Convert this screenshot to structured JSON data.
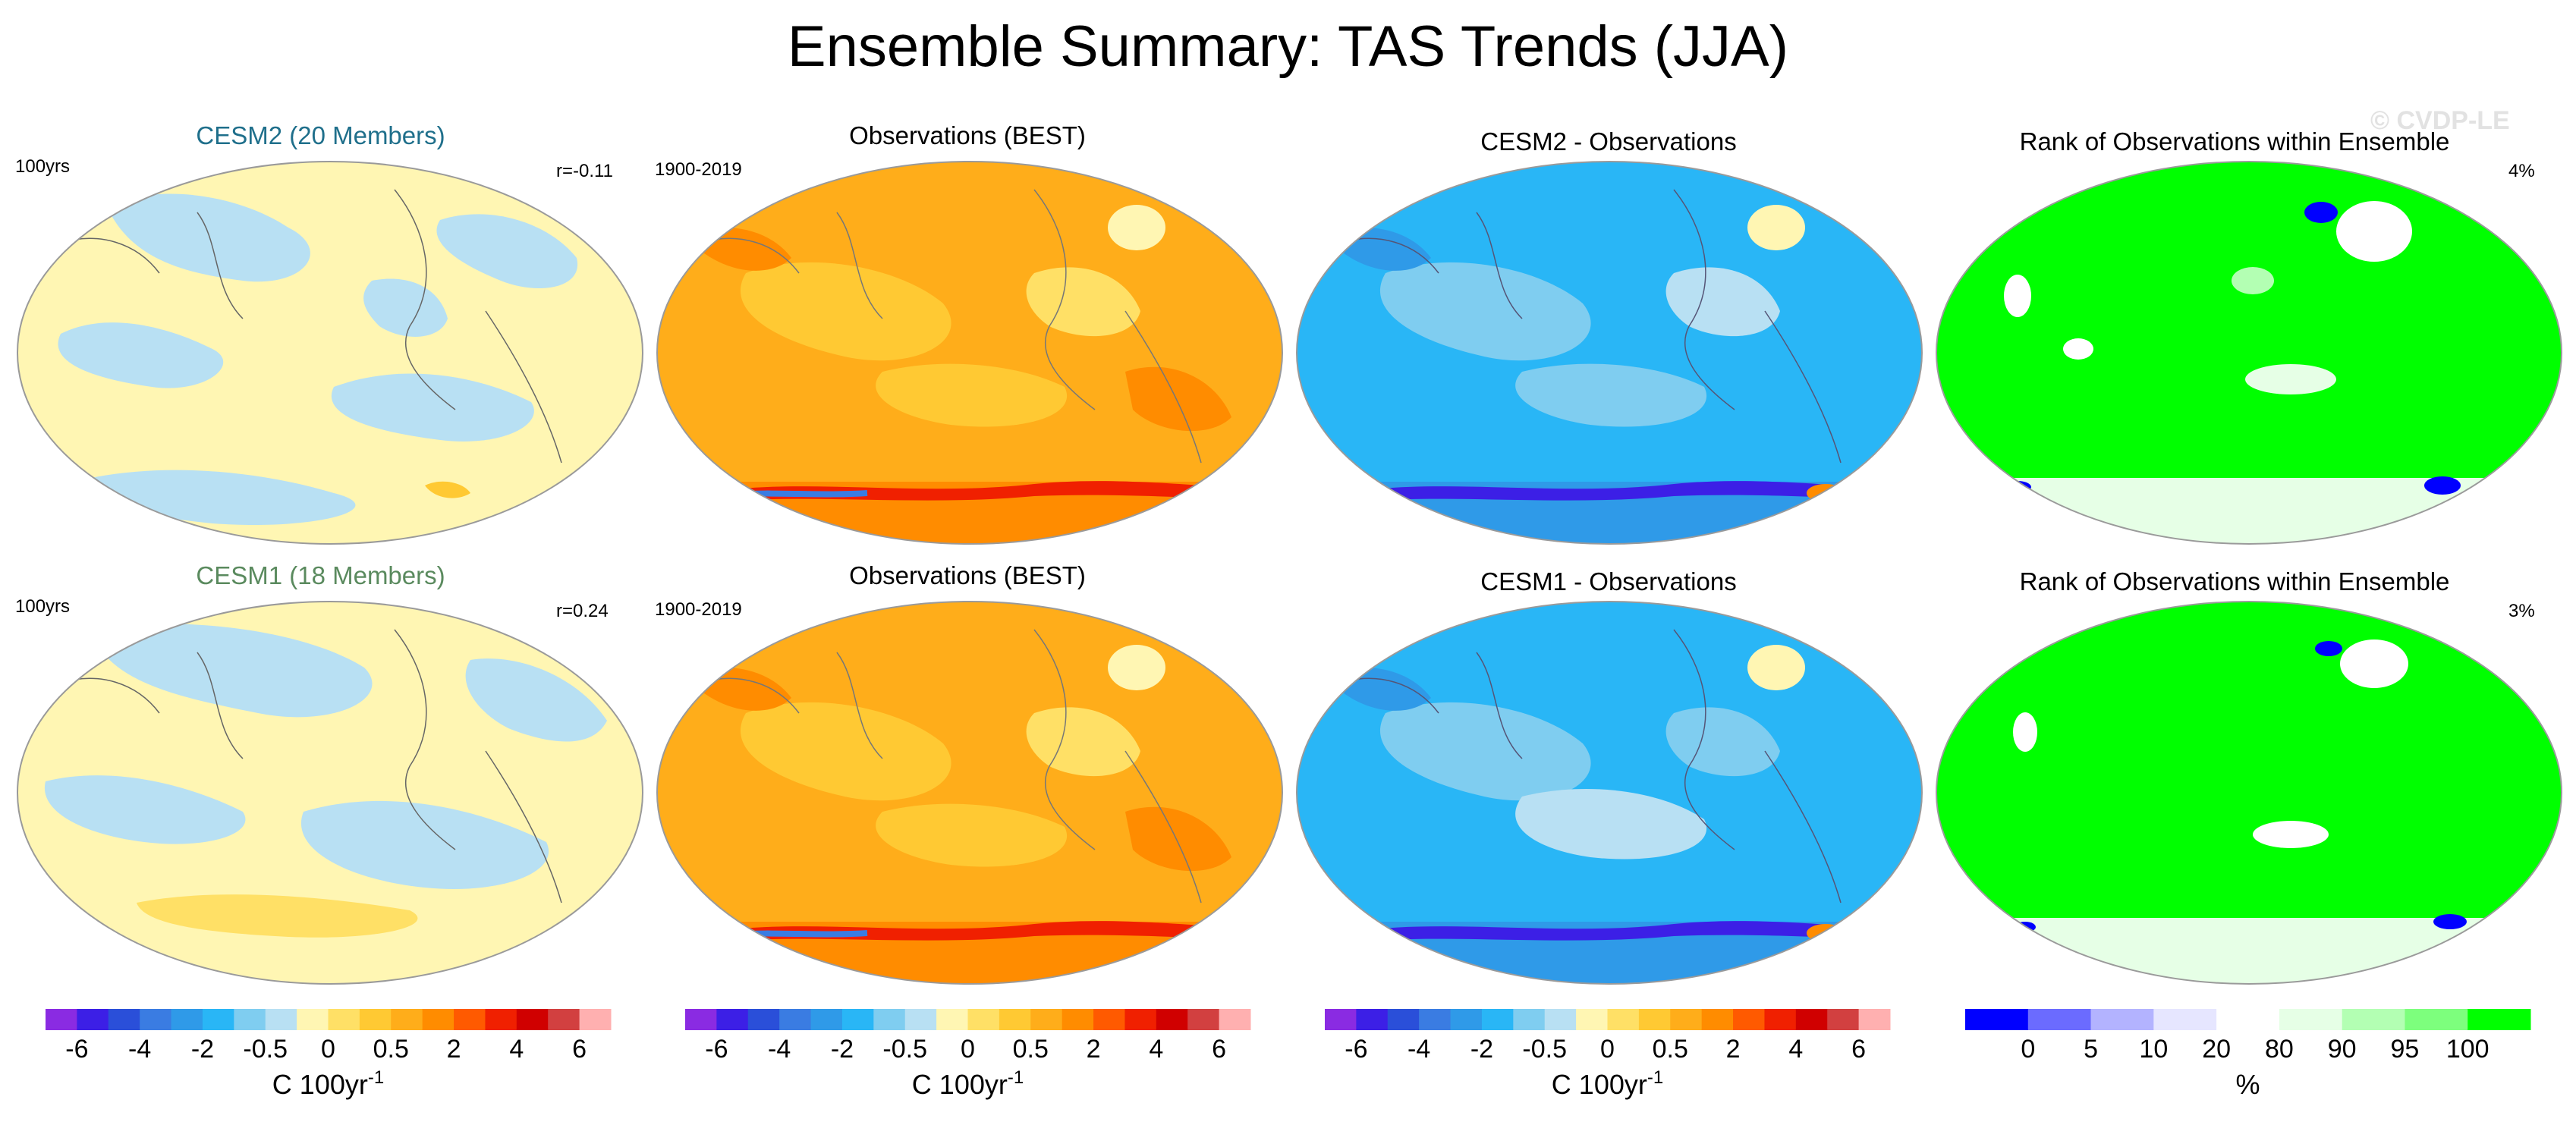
{
  "title": "Ensemble Summary: TAS Trends (JJA)",
  "watermark": "© CVDP-LE",
  "colors": {
    "cesm2_title": "#1f6f8b",
    "cesm1_title": "#5a8a5e",
    "trend_scale": [
      "#8a2be2",
      "#3c1fe6",
      "#2a4fd9",
      "#3a7ce2",
      "#2f9ae8",
      "#29b6f6",
      "#7fcdf0",
      "#b8e0f3",
      "#fff6b3",
      "#ffe066",
      "#ffc933",
      "#ffad1a",
      "#ff8c00",
      "#ff5a00",
      "#f02000",
      "#d00000",
      "#d24040",
      "#ffb0b0"
    ],
    "rank_scale": [
      "#0000ff",
      "#6b6bff",
      "#b3b3ff",
      "#e6e6ff",
      "#ffffff",
      "#e6ffe6",
      "#b3ffb3",
      "#7dff7d",
      "#00ff00"
    ]
  },
  "rows": [
    {
      "model_title": "CESM2 (20 Members)",
      "period_label": "100yrs",
      "corr_label": "r=-0.11",
      "obs_title": "Observations (BEST)",
      "obs_period": "1900-2019",
      "diff_title": "CESM2 - Observations",
      "rank_title": "Rank of Observations within Ensemble",
      "rank_pct": "4%"
    },
    {
      "model_title": "CESM1 (18 Members)",
      "period_label": "100yrs",
      "corr_label": "r=0.24",
      "obs_title": "Observations (BEST)",
      "obs_period": "1900-2019",
      "diff_title": "CESM1 - Observations",
      "rank_title": "Rank of Observations within Ensemble",
      "rank_pct": "3%"
    }
  ],
  "colorbars": {
    "trend": {
      "tick_labels": [
        "-6",
        "-4",
        "-2",
        "-0.5",
        "0",
        "0.5",
        "2",
        "4",
        "6"
      ],
      "unit": "C 100yr",
      "unit_exp": "-1"
    },
    "rank": {
      "tick_labels": [
        "0",
        "5",
        "10",
        "20",
        "80",
        "90",
        "95",
        "100"
      ],
      "unit": "%"
    }
  },
  "chart_data": {
    "type": "heatmap",
    "title": "Ensemble Summary: TAS Trends (JJA)",
    "panels": [
      {
        "row": 1,
        "name": "CESM2 (20 Members)",
        "info": [
          "100yrs",
          "r=-0.11"
        ],
        "units": "C 100yr-1"
      },
      {
        "row": 1,
        "name": "Observations (BEST)",
        "info": [
          "1900-2019"
        ],
        "units": "C 100yr-1"
      },
      {
        "row": 1,
        "name": "CESM2 - Observations",
        "units": "C 100yr-1"
      },
      {
        "row": 1,
        "name": "Rank of Observations within Ensemble",
        "info": [
          "4%"
        ],
        "units": "%"
      },
      {
        "row": 2,
        "name": "CESM1 (18 Members)",
        "info": [
          "100yrs",
          "r=0.24"
        ],
        "units": "C 100yr-1"
      },
      {
        "row": 2,
        "name": "Observations (BEST)",
        "info": [
          "1900-2019"
        ],
        "units": "C 100yr-1"
      },
      {
        "row": 2,
        "name": "CESM1 - Observations",
        "units": "C 100yr-1"
      },
      {
        "row": 2,
        "name": "Rank of Observations within Ensemble",
        "info": [
          "3%"
        ],
        "units": "%"
      }
    ],
    "trend_colorbar_ticks": [
      -6,
      -4,
      -2,
      -0.5,
      0,
      0.5,
      2,
      4,
      6
    ],
    "rank_colorbar_ticks": [
      0,
      5,
      10,
      20,
      80,
      90,
      95,
      100
    ]
  }
}
